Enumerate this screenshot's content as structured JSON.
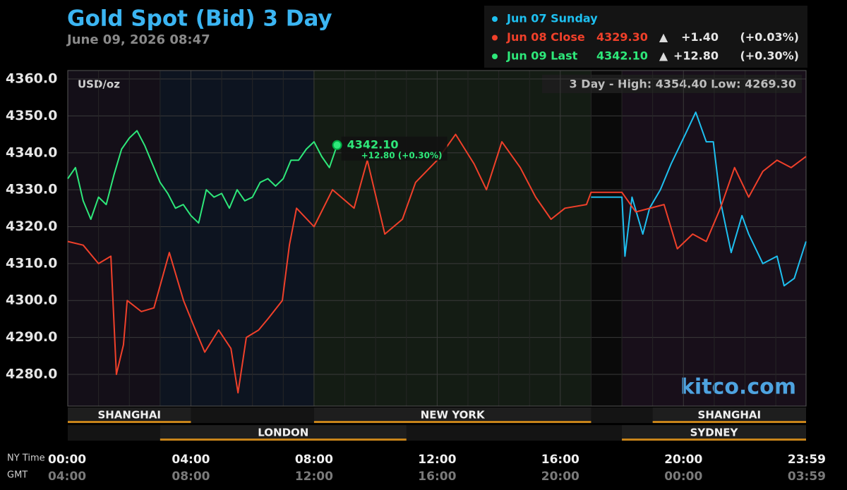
{
  "chart_data": {
    "type": "line",
    "title": "Gold Spot (Bid) 3 Day",
    "subtitle": "June 09, 2026 08:47",
    "unit_label": "USD/oz",
    "range_text": "3 Day - High: 4354.40  Low: 4269.30",
    "watermark": "kitco.com",
    "x_axis_labels": [
      "NY Time",
      "GMT"
    ],
    "xlim": [
      0,
      23.983
    ],
    "xticks": [
      {
        "value": 0,
        "label": "00:00"
      },
      {
        "value": 4,
        "label": "04:00"
      },
      {
        "value": 8,
        "label": "08:00"
      },
      {
        "value": 12,
        "label": "12:00"
      },
      {
        "value": 16,
        "label": "16:00"
      },
      {
        "value": 20,
        "label": "20:00"
      },
      {
        "value": 23.983,
        "label": "23:59"
      }
    ],
    "gmt_labels": [
      "04:00",
      "08:00",
      "12:00",
      "16:00",
      "20:00",
      "00:00",
      "03:59"
    ],
    "ylim": [
      4271.4,
      4362.3
    ],
    "yticks": [
      {
        "value": 4280,
        "label": "4280.0"
      },
      {
        "value": 4290,
        "label": "4290.0"
      },
      {
        "value": 4300,
        "label": "4300.0"
      },
      {
        "value": 4310,
        "label": "4310.0"
      },
      {
        "value": 4320,
        "label": "4320.0"
      },
      {
        "value": 4330,
        "label": "4330.0"
      },
      {
        "value": 4340,
        "label": "4340.0"
      },
      {
        "value": 4350,
        "label": "4350.0"
      },
      {
        "value": 4360,
        "label": "4360.0"
      }
    ],
    "grid": true,
    "sessions": [
      "SHANGHAI",
      "LONDON",
      "NEW YORK",
      "SHANGHAI",
      "SYDNEY"
    ],
    "series": [
      {
        "name": "Jun 07 Sunday",
        "color": "#1ec0f0",
        "x": [
          17,
          18,
          18.1,
          18.33,
          18.68,
          18.9,
          19.25,
          19.6,
          20.06,
          20.4,
          20.74,
          20.97,
          21.2,
          21.55,
          21.9,
          22.12,
          22.58,
          23.04,
          23.27,
          23.6,
          23.98
        ],
        "values": [
          4328,
          4328,
          4312,
          4328,
          4318,
          4325,
          4330,
          4337,
          4345,
          4351,
          4343,
          4343,
          4327,
          4313,
          4323,
          4318,
          4310,
          4312,
          4304,
          4306,
          4316
        ]
      },
      {
        "name": "Jun 08 Close",
        "color": "#f0402a",
        "x": [
          0,
          0.5,
          1.0,
          1.4,
          1.58,
          1.81,
          1.93,
          2.39,
          2.8,
          3.3,
          3.76,
          4.1,
          4.45,
          4.9,
          5.3,
          5.53,
          5.8,
          6.2,
          6.5,
          6.97,
          7.2,
          7.43,
          8.0,
          8.6,
          9.3,
          9.73,
          10.3,
          10.87,
          11.3,
          12.0,
          12.6,
          13.2,
          13.6,
          14.1,
          14.7,
          15.2,
          15.7,
          16.15,
          16.85,
          17.0,
          18.0,
          18.45,
          19.37,
          19.8,
          20.3,
          20.74,
          21.2,
          21.66,
          22.12,
          22.58,
          23.04,
          23.5,
          23.98
        ],
        "values": [
          4316,
          4315,
          4310,
          4312,
          4280,
          4288,
          4300,
          4297,
          4298,
          4313,
          4300,
          4293,
          4286,
          4292,
          4287,
          4275,
          4290,
          4292,
          4295,
          4300,
          4315,
          4325,
          4320,
          4330,
          4325,
          4338,
          4318,
          4322,
          4332,
          4338,
          4345,
          4337,
          4330,
          4343,
          4336,
          4328,
          4322,
          4325,
          4326,
          4329.3,
          4329.3,
          4324,
          4326,
          4314,
          4318,
          4316,
          4325,
          4336,
          4328,
          4335,
          4338,
          4336,
          4339
        ]
      },
      {
        "name": "Jun 09 Last",
        "color": "#2ee87a",
        "x": [
          0,
          0.25,
          0.5,
          0.75,
          1.0,
          1.25,
          1.5,
          1.75,
          2.0,
          2.25,
          2.5,
          2.75,
          3.0,
          3.25,
          3.5,
          3.75,
          4.0,
          4.25,
          4.5,
          4.75,
          5.0,
          5.25,
          5.5,
          5.75,
          6.0,
          6.25,
          6.5,
          6.75,
          7.0,
          7.25,
          7.5,
          7.75,
          8.0,
          8.25,
          8.5,
          8.75
        ],
        "values": [
          4333,
          4336,
          4327,
          4322,
          4328,
          4326,
          4334,
          4341,
          4344,
          4346,
          4342,
          4337,
          4332,
          4329,
          4325,
          4326,
          4323,
          4321,
          4330,
          4328,
          4329,
          4325,
          4330,
          4327,
          4328,
          4332,
          4333,
          4331,
          4333,
          4338,
          4338,
          4341,
          4343,
          4339,
          4336,
          4342.1
        ]
      }
    ],
    "legend_details": [
      [],
      [
        "4329.30",
        "▲",
        "+1.40",
        "(+0.03%)"
      ],
      [
        "4342.10",
        "▲",
        "+12.80",
        "(+0.30%)"
      ]
    ],
    "last_annotation": [
      "4342.10",
      "+12.80 (+0.30%)"
    ]
  }
}
